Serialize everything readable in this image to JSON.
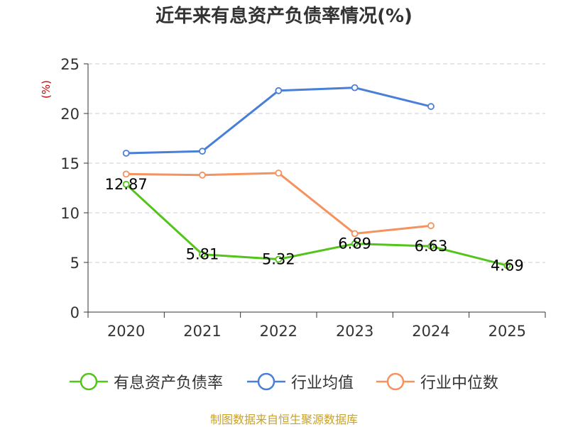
{
  "chart_data": {
    "type": "line",
    "title": "近年来有息资产负债率情况(%)",
    "ylabel": "(%)",
    "categories": [
      "2020",
      "2021",
      "2022",
      "2023",
      "2024",
      "2025"
    ],
    "ylim": [
      0,
      25
    ],
    "yticks": [
      "0",
      "5",
      "10",
      "15",
      "20",
      "25"
    ],
    "grid": true,
    "legend_position": "bottom",
    "series": [
      {
        "name": "有息资产负债率",
        "color": "#52c41a",
        "values": [
          12.87,
          5.81,
          5.32,
          6.89,
          6.63,
          4.69
        ],
        "labels": [
          "12.87",
          "5.81",
          "5.32",
          "6.89",
          "6.63",
          "4.69"
        ]
      },
      {
        "name": "行业均值",
        "color": "#4a7fd8",
        "values": [
          16.0,
          16.2,
          22.3,
          22.6,
          20.7,
          null
        ]
      },
      {
        "name": "行业中位数",
        "color": "#f5925e",
        "values": [
          13.9,
          13.8,
          14.0,
          7.9,
          8.7,
          null
        ]
      }
    ]
  },
  "source_note": "制图数据来自恒生聚源数据库",
  "colors": {
    "ylabel": "#cc0000",
    "source_note": "#c9a227",
    "grid": "#cccccc",
    "axis": "#333333"
  }
}
